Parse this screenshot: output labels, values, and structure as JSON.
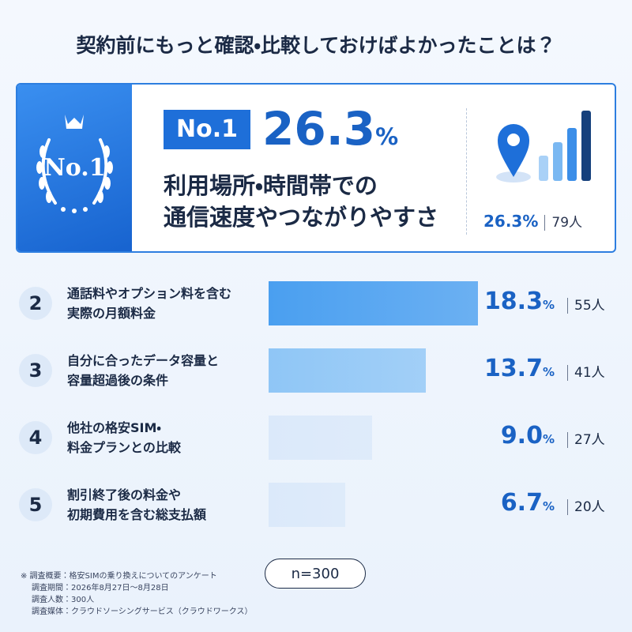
{
  "chart_data": {
    "type": "bar",
    "title": "契約前にもっと確認・比較しておけばよかったことは？",
    "top_badge": "No.1",
    "ranks": [
      1,
      2,
      3,
      4,
      5
    ],
    "categories": [
      "利用場所・時間帯での\n通信速度やつながりやすさ",
      "通話料やオプション料を含む\n実際の月額料金",
      "自分に合ったデータ容量と\n容量超過後の条件",
      "他社の格安SIM・\n料金プランとの比較",
      "割引終了後の料金や\n初期費用を含む総支払額"
    ],
    "values": [
      26.3,
      18.3,
      13.7,
      9.0,
      6.7
    ],
    "value_labels": [
      "26.3%",
      "18.3%",
      "13.7%",
      "9.0%",
      "6.7%"
    ],
    "counts": [
      79,
      55,
      41,
      27,
      20
    ],
    "count_unit": "人",
    "colors": [
      "#1e6fd9",
      "#4a9ff0",
      "#8fc6f6",
      "#dbe9fa",
      "#dbe9fa"
    ],
    "sample": "n=300",
    "notes": [
      "※ 調査概要：格安SIMの乗り換えについてのアンケート",
      "調査期間：2026年8月27日～8月28日",
      "調査人数：300人",
      "調査媒体：クラウドソーシングサービス（クラウドワークス）"
    ]
  }
}
